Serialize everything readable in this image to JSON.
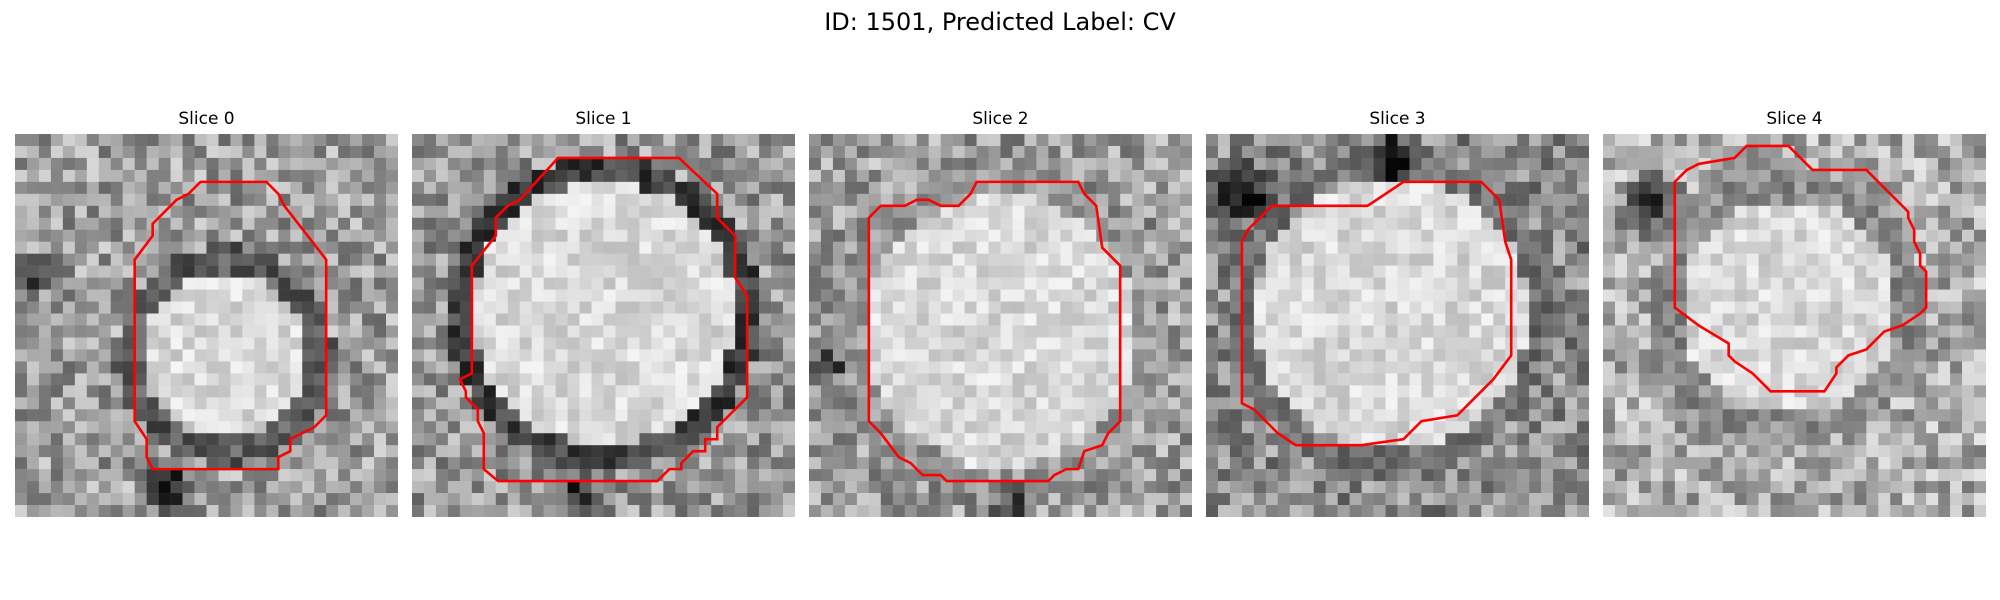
{
  "figure": {
    "title": "ID: 1501, Predicted Label: CV"
  },
  "slices": [
    {
      "title": "Slice 0"
    },
    {
      "title": "Slice 1"
    },
    {
      "title": "Slice 2"
    },
    {
      "title": "Slice 3"
    },
    {
      "title": "Slice 4"
    }
  ],
  "colors": {
    "contour": "#ff0000",
    "background": "#ffffff"
  }
}
